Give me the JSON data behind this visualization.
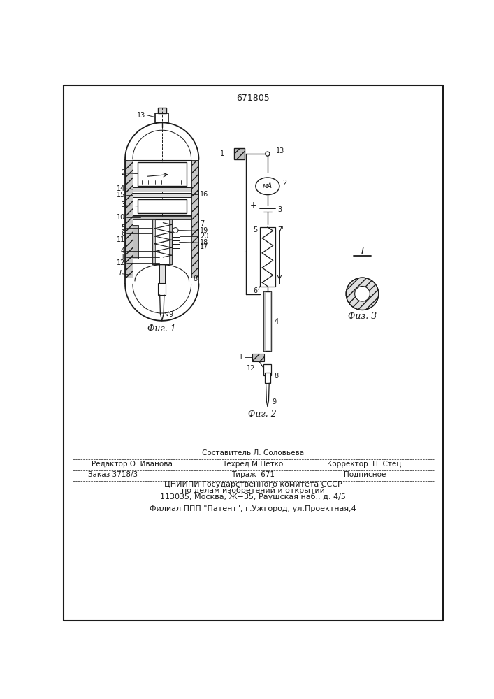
{
  "title": "671805",
  "bg_color": "#ffffff",
  "line_color": "#1a1a1a",
  "fig1_caption": "Фиг. 1",
  "fig2_caption": "Фиг. 2",
  "fig3_caption": "Физ. 3"
}
